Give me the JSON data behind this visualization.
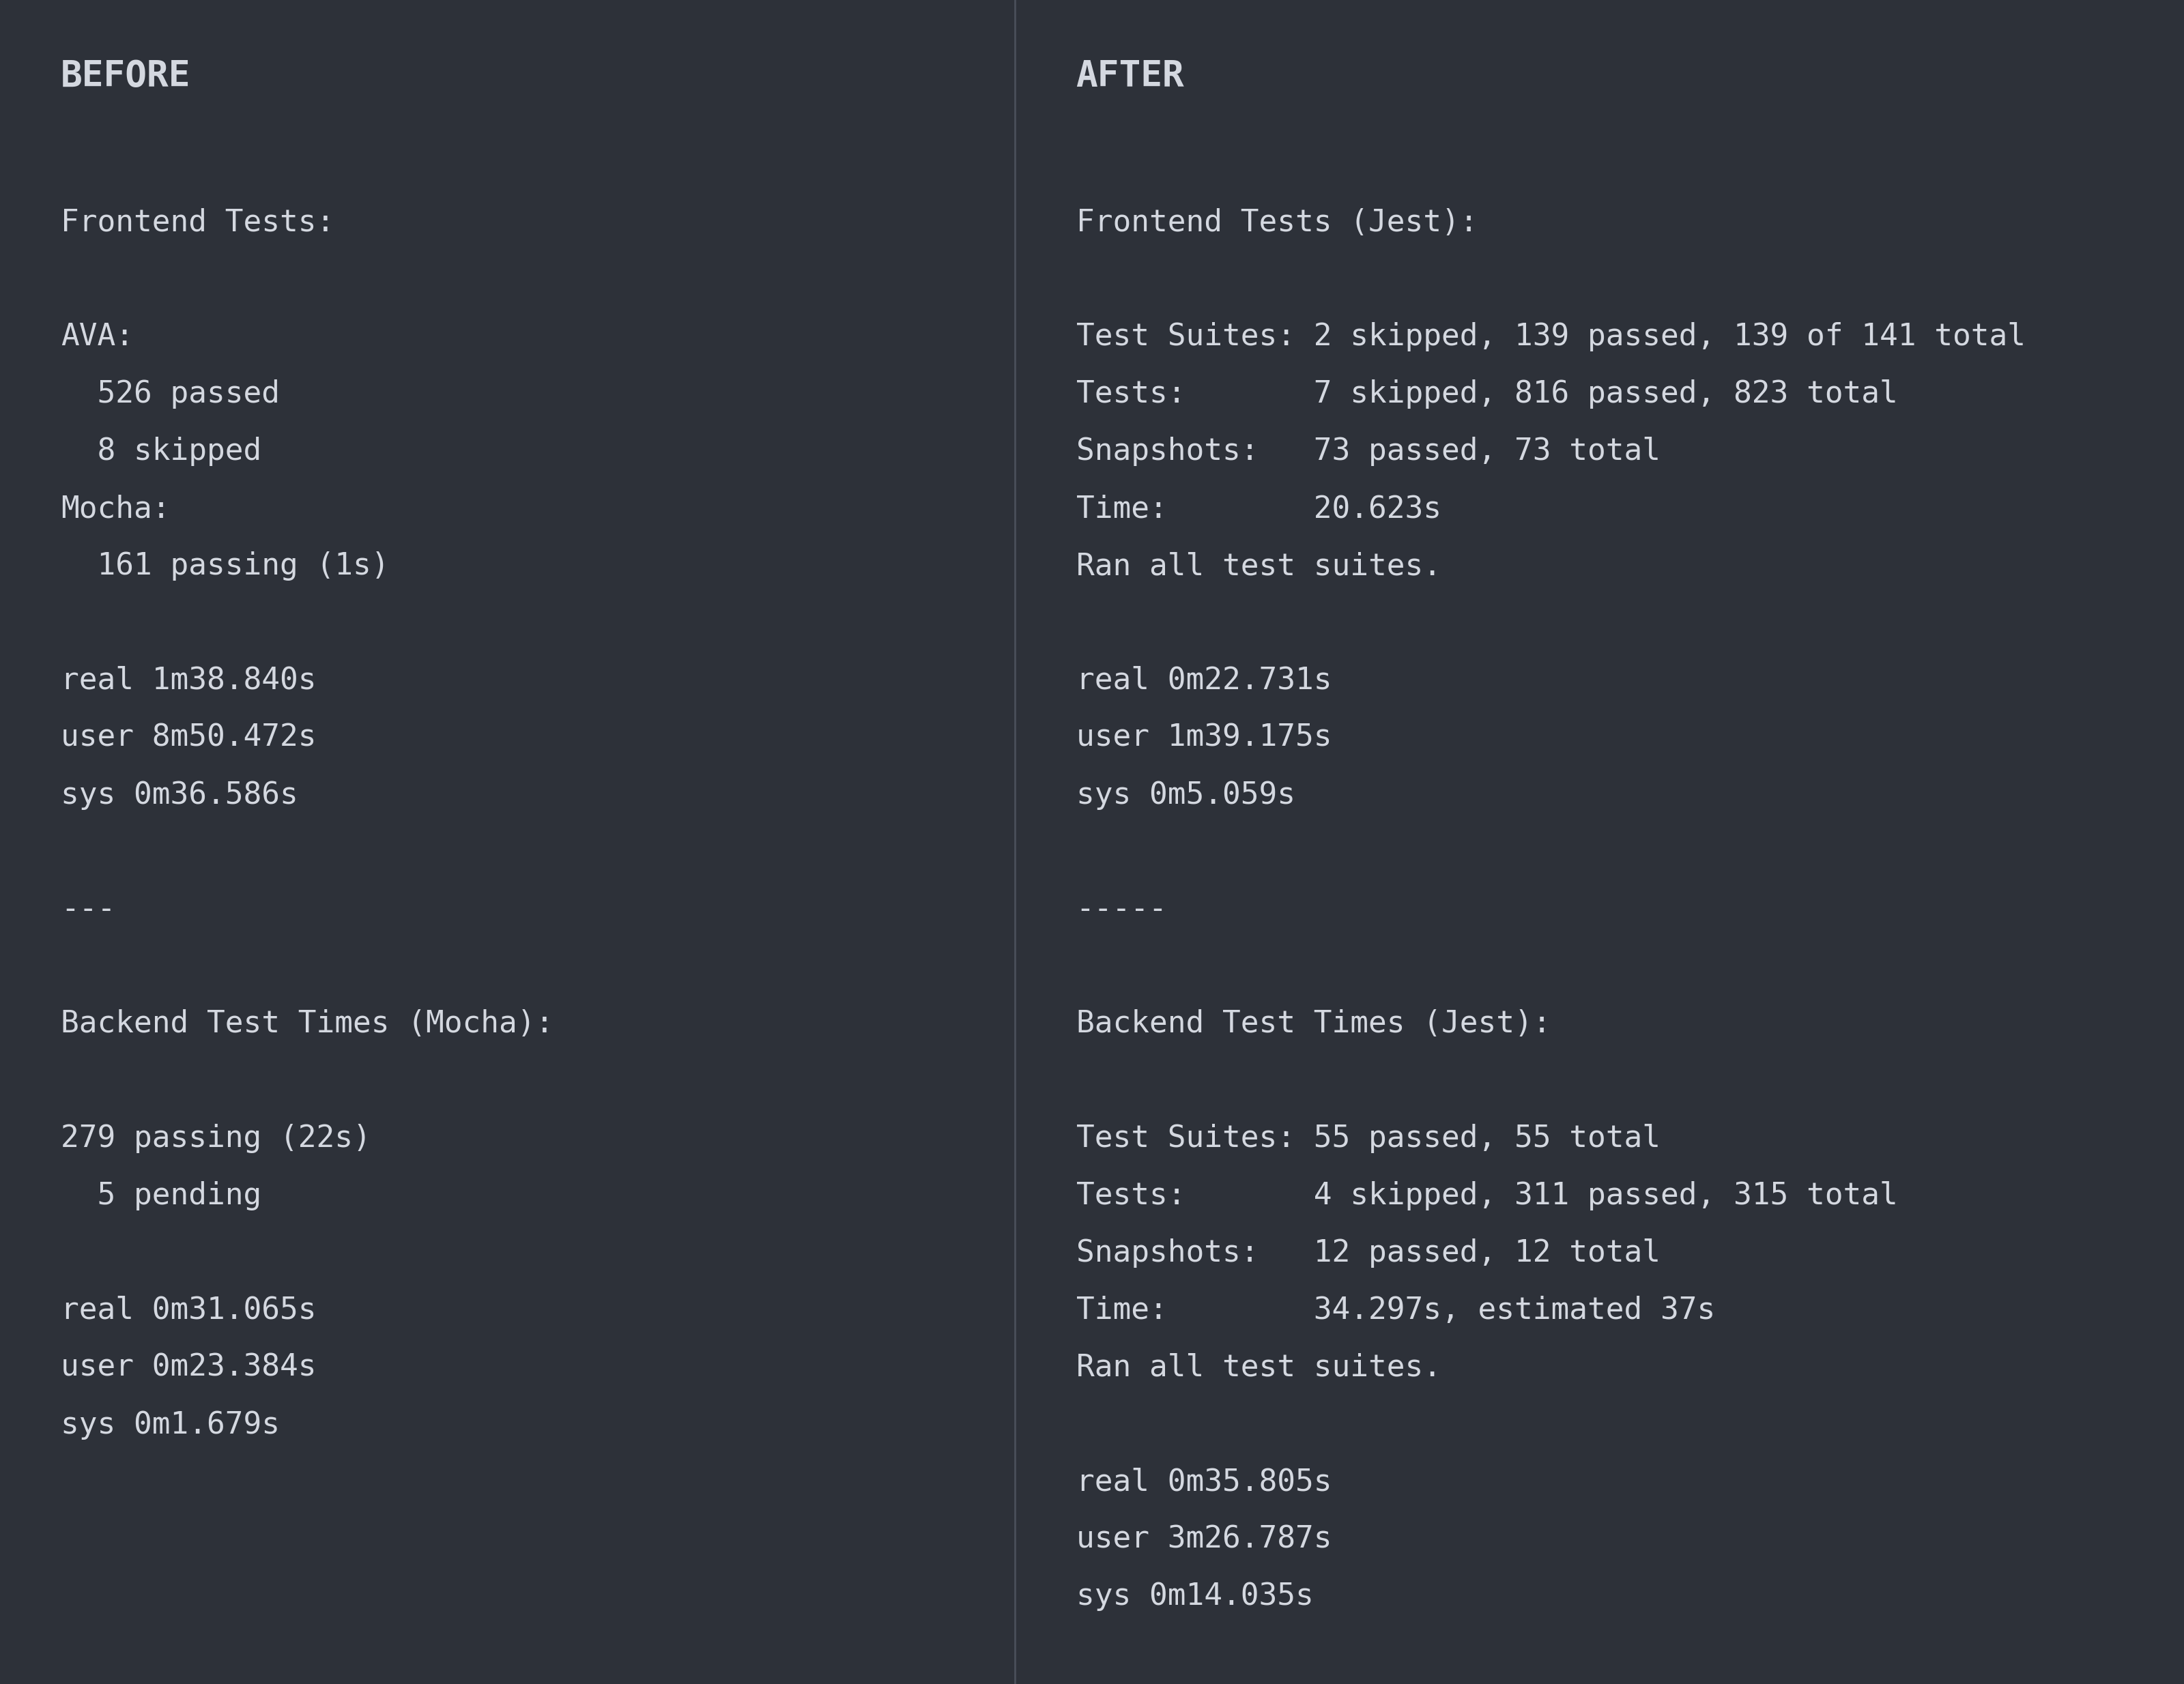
{
  "bg_color": "#2d3139",
  "text_color": "#d4d8e0",
  "divider_color": "#4a4f5a",
  "font_family": "monospace",
  "title_fontsize": 38,
  "body_fontsize": 32,
  "before_title": "BEFORE",
  "after_title": "AFTER",
  "before_lines": [
    "",
    "Frontend Tests:",
    "",
    "AVA:",
    "  526 passed",
    "  8 skipped",
    "Mocha:",
    "  161 passing (1s)",
    "",
    "real 1m38.840s",
    "user 8m50.472s",
    "sys 0m36.586s",
    "",
    "---",
    "",
    "Backend Test Times (Mocha):",
    "",
    "279 passing (22s)",
    "  5 pending",
    "",
    "real 0m31.065s",
    "user 0m23.384s",
    "sys 0m1.679s"
  ],
  "after_lines": [
    "",
    "Frontend Tests (Jest):",
    "",
    "Test Suites: 2 skipped, 139 passed, 139 of 141 total",
    "Tests:       7 skipped, 816 passed, 823 total",
    "Snapshots:   73 passed, 73 total",
    "Time:        20.623s",
    "Ran all test suites.",
    "",
    "real 0m22.731s",
    "user 1m39.175s",
    "sys 0m5.059s",
    "",
    "-----",
    "",
    "Backend Test Times (Jest):",
    "",
    "Test Suites: 55 passed, 55 total",
    "Tests:       4 skipped, 311 passed, 315 total",
    "Snapshots:   12 passed, 12 total",
    "Time:        34.297s, estimated 37s",
    "Ran all test suites.",
    "",
    "real 0m35.805s",
    "user 3m26.787s",
    "sys 0m14.035s"
  ]
}
